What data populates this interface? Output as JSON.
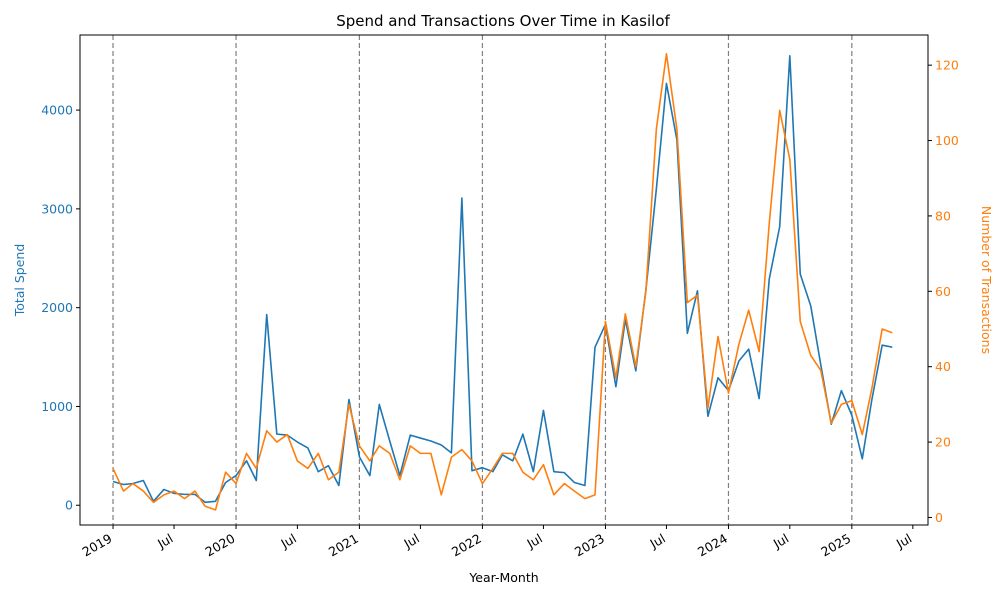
{
  "chart_data": {
    "type": "line",
    "title": "Spend and Transactions Over Time in Kasilof",
    "xlabel": "Year-Month",
    "ylabel_left": "Total Spend",
    "ylabel_right": "Number of Transactions",
    "x_tick_labels": [
      "2019",
      "Jul",
      "2020",
      "Jul",
      "2021",
      "Jul",
      "2022",
      "Jul",
      "2023",
      "Jul",
      "2024",
      "Jul",
      "2025",
      "Jul"
    ],
    "x_tick_dates": [
      "2019-01",
      "2019-07",
      "2020-01",
      "2020-07",
      "2021-01",
      "2021-07",
      "2022-01",
      "2022-07",
      "2023-01",
      "2023-07",
      "2024-01",
      "2024-07",
      "2025-01",
      "2025-07"
    ],
    "xlim": [
      "2018-09-25",
      "2025-08-15"
    ],
    "ylim_left": [
      -200,
      4760
    ],
    "ylim_right": [
      -2,
      128
    ],
    "y_ticks_left": [
      0,
      1000,
      2000,
      3000,
      4000
    ],
    "y_ticks_right": [
      0,
      20,
      40,
      60,
      80,
      100,
      120
    ],
    "year_marker_dates": [
      "2019-01",
      "2020-01",
      "2021-01",
      "2022-01",
      "2023-01",
      "2024-01",
      "2025-01"
    ],
    "colors": {
      "spend": "#1f77b4",
      "transactions": "#ff7f0e",
      "marker": "#808080"
    },
    "x": [
      "2019-01",
      "2019-02",
      "2019-03",
      "2019-04",
      "2019-05",
      "2019-06",
      "2019-07",
      "2019-08",
      "2019-09",
      "2019-10",
      "2019-11",
      "2019-12",
      "2020-01",
      "2020-02",
      "2020-03",
      "2020-04",
      "2020-05",
      "2020-06",
      "2020-07",
      "2020-08",
      "2020-09",
      "2020-10",
      "2020-11",
      "2020-12",
      "2021-01",
      "2021-02",
      "2021-03",
      "2021-04",
      "2021-05",
      "2021-06",
      "2021-07",
      "2021-08",
      "2021-09",
      "2021-10",
      "2021-11",
      "2021-12",
      "2022-01",
      "2022-02",
      "2022-03",
      "2022-04",
      "2022-05",
      "2022-06",
      "2022-07",
      "2022-08",
      "2022-09",
      "2022-10",
      "2022-11",
      "2022-12",
      "2023-01",
      "2023-02",
      "2023-03",
      "2023-04",
      "2023-05",
      "2023-06",
      "2023-07",
      "2023-08",
      "2023-09",
      "2023-10",
      "2023-11",
      "2023-12",
      "2024-01",
      "2024-02",
      "2024-03",
      "2024-04",
      "2024-05",
      "2024-06",
      "2024-07",
      "2024-08",
      "2024-09",
      "2024-10",
      "2024-11",
      "2024-12",
      "2025-01",
      "2025-02",
      "2025-03",
      "2025-04",
      "2025-05"
    ],
    "series": [
      {
        "axis": "left",
        "values": [
          240,
          210,
          220,
          250,
          40,
          160,
          120,
          110,
          110,
          30,
          40,
          230,
          300,
          450,
          250,
          1930,
          720,
          710,
          640,
          580,
          340,
          400,
          200,
          1070,
          490,
          300,
          1020,
          650,
          300,
          710,
          680,
          650,
          610,
          530,
          3110,
          350,
          380,
          340,
          510,
          450,
          720,
          340,
          960,
          340,
          330,
          230,
          200,
          1600,
          1830,
          1200,
          1880,
          1360,
          2180,
          3200,
          4270,
          3700,
          1740,
          2170,
          900,
          1290,
          1160,
          1460,
          1580,
          1080,
          2290,
          2820,
          4550,
          2340,
          2020,
          1420,
          820,
          1160,
          910,
          470,
          1060,
          1620,
          1600
        ]
      },
      {
        "axis": "right",
        "values": [
          13,
          7,
          9,
          7,
          4,
          6,
          7,
          5,
          7,
          3,
          2,
          12,
          9,
          17,
          13,
          23,
          20,
          22,
          15,
          13,
          17,
          10,
          12,
          30,
          19,
          15,
          19,
          17,
          10,
          19,
          17,
          17,
          6,
          16,
          18,
          15,
          9,
          13,
          17,
          17,
          12,
          10,
          14,
          6,
          9,
          7,
          5,
          6,
          52,
          37,
          54,
          40,
          60,
          103,
          123,
          103,
          57,
          59,
          29,
          48,
          33,
          46,
          55,
          44,
          78,
          108,
          95,
          52,
          43,
          39,
          25,
          30,
          31,
          22,
          34,
          50,
          49
        ]
      }
    ]
  }
}
